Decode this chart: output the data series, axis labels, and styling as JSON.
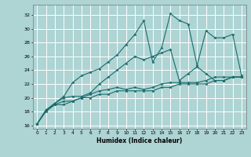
{
  "xlabel": "Humidex (Indice chaleur)",
  "ylabel": "",
  "xlim": [
    -0.5,
    23.5
  ],
  "ylim": [
    15.5,
    33.5
  ],
  "yticks": [
    16,
    18,
    20,
    22,
    24,
    26,
    28,
    30,
    32
  ],
  "xticks": [
    0,
    1,
    2,
    3,
    4,
    5,
    6,
    7,
    8,
    9,
    10,
    11,
    12,
    13,
    14,
    15,
    16,
    17,
    18,
    19,
    20,
    21,
    22,
    23
  ],
  "bg_color": "#aed4d4",
  "grid_color": "#ffffff",
  "line_color": "#1a6b6b",
  "lines": [
    {
      "x": [
        0,
        1,
        2,
        3,
        4,
        5,
        6,
        7,
        8,
        9,
        10,
        11,
        12,
        13,
        14,
        15,
        16,
        17,
        18,
        19,
        20,
        21,
        22,
        23
      ],
      "y": [
        16.2,
        18.2,
        19.2,
        20.2,
        22.2,
        23.2,
        23.7,
        24.2,
        25.2,
        26.2,
        27.7,
        29.2,
        31.2,
        25.2,
        27.2,
        32.2,
        31.2,
        30.7,
        24.7,
        29.7,
        28.7,
        28.7,
        29.2,
        23.2
      ]
    },
    {
      "x": [
        0,
        1,
        2,
        3,
        4,
        5,
        6,
        7,
        8,
        9,
        10,
        11,
        12,
        13,
        14,
        15,
        16,
        17,
        18,
        19,
        20,
        21,
        22,
        23
      ],
      "y": [
        16.2,
        18.2,
        19.2,
        20.0,
        20.2,
        20.2,
        20.7,
        22.0,
        23.0,
        24.0,
        25.0,
        26.0,
        25.5,
        26.0,
        26.5,
        27.0,
        22.5,
        23.5,
        24.5,
        23.5,
        22.5,
        22.5,
        23.0,
        23.0
      ]
    },
    {
      "x": [
        0,
        1,
        2,
        3,
        4,
        5,
        6,
        7,
        8,
        9,
        10,
        11,
        12,
        13,
        14,
        15,
        16,
        17,
        18,
        19,
        20,
        21,
        22,
        23
      ],
      "y": [
        16.2,
        18.2,
        19.0,
        19.5,
        19.5,
        20.0,
        20.5,
        21.0,
        21.2,
        21.5,
        21.2,
        21.5,
        21.2,
        21.5,
        22.0,
        22.2,
        22.2,
        22.2,
        22.2,
        22.5,
        23.0,
        23.0,
        23.0,
        23.0
      ]
    },
    {
      "x": [
        0,
        1,
        2,
        3,
        4,
        5,
        6,
        7,
        8,
        9,
        10,
        11,
        12,
        13,
        14,
        15,
        16,
        17,
        18,
        19,
        20,
        21,
        22,
        23
      ],
      "y": [
        16.2,
        18.0,
        19.0,
        19.0,
        19.5,
        20.0,
        20.0,
        20.5,
        20.5,
        21.0,
        21.0,
        21.0,
        21.0,
        21.0,
        21.5,
        21.5,
        22.0,
        22.0,
        22.0,
        22.0,
        22.5,
        22.5,
        23.0,
        23.0
      ]
    }
  ]
}
